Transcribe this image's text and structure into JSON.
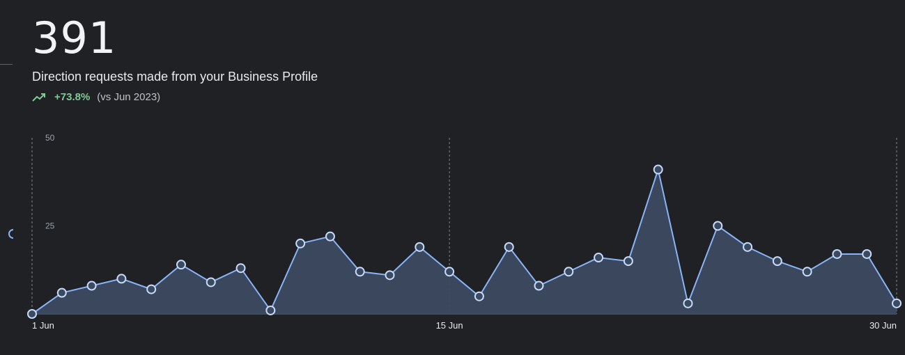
{
  "header": {
    "total": "391",
    "description": "Direction requests made from your Business Profile",
    "change": "+73.8%",
    "comparison": "(vs Jun 2023)",
    "trend_icon": "trending-up-icon",
    "change_color": "#81c995"
  },
  "colors": {
    "background": "#202125",
    "line": "#8ab4f8",
    "fill": "#3c4a5f",
    "grid": "#9aa0a6"
  },
  "chart_data": {
    "type": "area",
    "ylim": [
      0,
      50
    ],
    "y_ticks": [
      {
        "value": 50,
        "label": "50"
      },
      {
        "value": 25,
        "label": "25"
      }
    ],
    "x_ticks": [
      {
        "day": 1,
        "label": "1 Jun"
      },
      {
        "day": 15,
        "label": "15 Jun"
      },
      {
        "day": 30,
        "label": "30 Jun"
      }
    ],
    "x_range": [
      1,
      30
    ],
    "series": [
      {
        "x": [
          1,
          2,
          3,
          4,
          5,
          6,
          7,
          8,
          9,
          10,
          11,
          12,
          13,
          14,
          15,
          16,
          17,
          18,
          19,
          20,
          21,
          22,
          23,
          24,
          25,
          26,
          27,
          28,
          29,
          30
        ],
        "values": [
          0,
          6,
          8,
          10,
          7,
          14,
          9,
          13,
          1,
          20,
          22,
          12,
          11,
          19,
          12,
          5,
          19,
          8,
          12,
          16,
          15,
          41,
          3,
          25,
          19,
          15,
          12,
          17,
          17,
          3
        ]
      }
    ]
  }
}
